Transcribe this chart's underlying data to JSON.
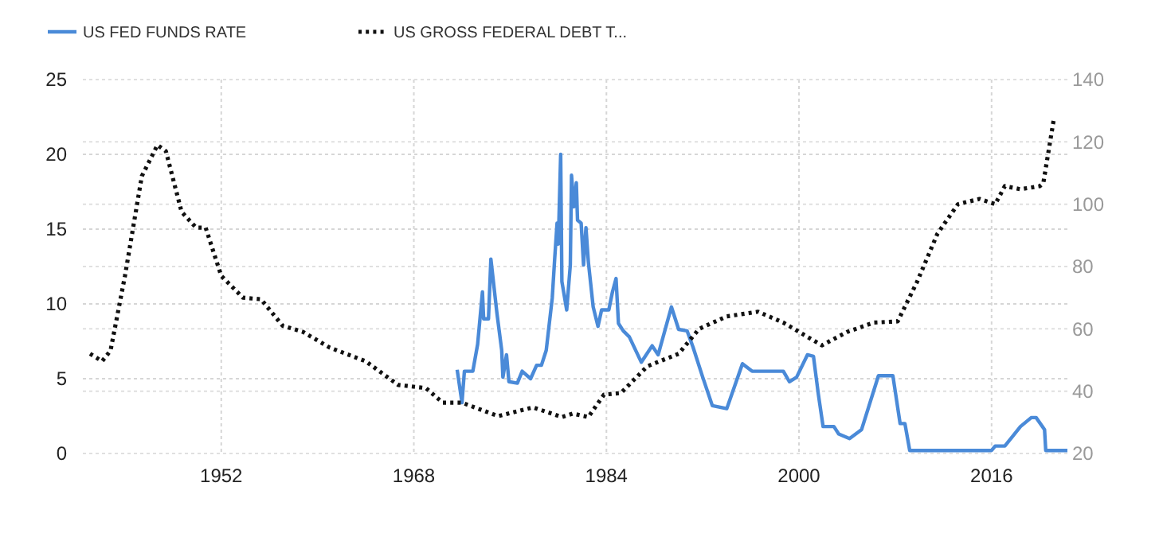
{
  "chart_data": {
    "type": "line",
    "legend": "top left",
    "grid": true,
    "xlim": [
      1940.5,
      2022.3
    ],
    "xticks": [
      1952,
      1968,
      1984,
      2000,
      2016
    ],
    "ylim": [
      0,
      25
    ],
    "yticks": [
      0,
      5,
      10,
      15,
      20,
      25
    ],
    "y2lim": [
      20,
      140
    ],
    "y2ticks": [
      20,
      40,
      60,
      80,
      100,
      120,
      140
    ],
    "series": [
      {
        "name": "US FED FUNDS RATE",
        "color": "#4a8ad8",
        "line_style": "solid",
        "x": [
          1971.6,
          1972,
          1972.2,
          1972.9,
          1973.3,
          1973.7,
          1973.8,
          1974.2,
          1974.4,
          1974.9,
          1975.3,
          1975.4,
          1975.7,
          1975.9,
          1976.6,
          1977,
          1977.7,
          1978.2,
          1978.6,
          1979,
          1979.5,
          1979.7,
          1979.9,
          1980,
          1980.2,
          1980.3,
          1980.7,
          1981,
          1981.1,
          1981.3,
          1981.5,
          1981.6,
          1981.9,
          1982.1,
          1982.3,
          1982.5,
          1982.9,
          1983.3,
          1983.6,
          1984.2,
          1984.5,
          1984.8,
          1985,
          1985.4,
          1985.9,
          1986.9,
          1987.8,
          1988.3,
          1989.4,
          1990,
          1990.7,
          1991.2,
          1992,
          1992.8,
          1994,
          1995.3,
          1996.1,
          1997.4,
          1998.7,
          1999.2,
          1999.8,
          2000.7,
          2001.2,
          2001.6,
          2002,
          2002.9,
          2003.3,
          2004.2,
          2005.2,
          2006.6,
          2007.8,
          2008.4,
          2008.8,
          2009.2,
          2016,
          2016.3,
          2017.1,
          2018.4,
          2019.3,
          2019.7,
          2020.4,
          2020.5,
          2022.3
        ],
        "values": [
          5.6,
          3.4,
          5.5,
          5.5,
          7.3,
          10.8,
          9,
          9,
          13,
          9.4,
          6.9,
          5.1,
          6.6,
          4.8,
          4.7,
          5.5,
          5,
          5.9,
          5.9,
          6.9,
          10.4,
          13,
          15.4,
          14,
          20,
          11.5,
          9.6,
          12.6,
          18.6,
          16.5,
          18.1,
          15.6,
          15.4,
          12.6,
          15.1,
          12.8,
          9.8,
          8.5,
          9.6,
          9.6,
          10.8,
          11.7,
          8.7,
          8.2,
          7.8,
          6.1,
          7.2,
          6.6,
          9.8,
          8.3,
          8.2,
          7.1,
          5.1,
          3.2,
          3,
          6,
          5.5,
          5.5,
          5.5,
          4.8,
          5.1,
          6.6,
          6.5,
          4,
          1.8,
          1.8,
          1.3,
          1,
          1.6,
          5.2,
          5.2,
          2,
          2,
          0.2,
          0.2,
          0.5,
          0.5,
          1.8,
          2.4,
          2.4,
          1.6,
          0.2,
          0.2
        ]
      },
      {
        "name": "US GROSS FEDERAL DEBT T...",
        "color": "#111111",
        "line_style": "dotted",
        "axis": "y2",
        "x": [
          1941.1,
          1942.1,
          1942.8,
          1944,
          1945.4,
          1946.7,
          1947.4,
          1948.7,
          1949.9,
          1950.7,
          1952,
          1953.8,
          1955.3,
          1957.1,
          1958.8,
          1961,
          1964,
          1966.7,
          1969,
          1970.4,
          1972,
          1975,
          1977.9,
          1980.3,
          1981.2,
          1982.5,
          1983.8,
          1985.2,
          1987.4,
          1990,
          1991.7,
          1994,
          1996.6,
          1998.7,
          2001.9,
          2004,
          2006.2,
          2008.2,
          2009.8,
          2011.5,
          2013.2,
          2015,
          2016.3,
          2017.1,
          2018.4,
          2020,
          2020.3,
          2021.2
        ],
        "values": [
          52,
          49.6,
          53,
          77,
          109,
          119,
          117,
          97.6,
          92.5,
          92.5,
          77,
          70,
          69.5,
          61,
          59,
          54,
          49.6,
          42,
          41,
          36.3,
          36.3,
          32,
          34.8,
          31.7,
          32.8,
          31.7,
          38.9,
          39.4,
          48,
          52,
          60,
          64,
          65.5,
          62,
          54.7,
          59,
          62,
          62.4,
          75,
          90.5,
          100,
          101.7,
          100,
          105.8,
          104.8,
          105.8,
          106.8,
          128
        ]
      }
    ]
  }
}
